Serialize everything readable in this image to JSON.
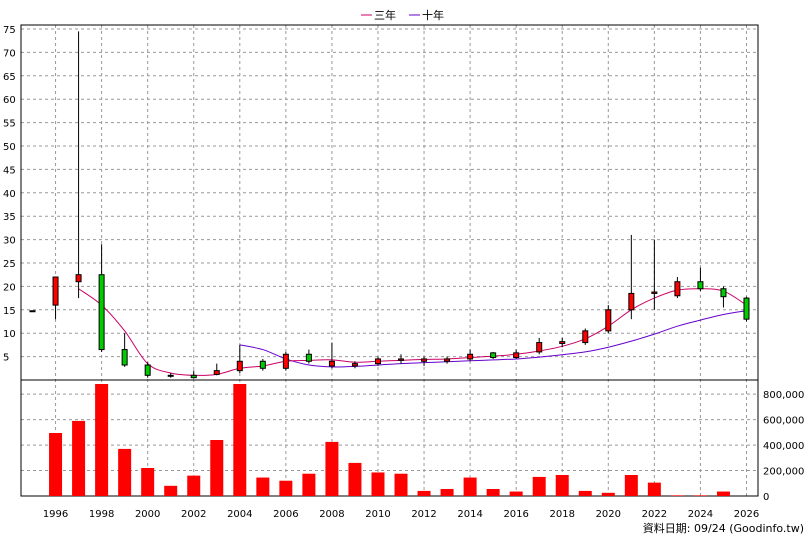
{
  "chart_data": {
    "type": "candlestick-with-volume",
    "legend": [
      {
        "label": "三年",
        "color": "#cc0066"
      },
      {
        "label": "十年",
        "color": "#6600cc"
      }
    ],
    "price_axis": {
      "ylim": [
        0,
        75
      ],
      "ticks": [
        5,
        10,
        15,
        20,
        25,
        30,
        35,
        40,
        45,
        50,
        55,
        60,
        65,
        70,
        75
      ]
    },
    "volume_axis": {
      "ylim": [
        0,
        880000
      ],
      "ticks": [
        0,
        200000,
        400000,
        600000,
        800000
      ],
      "tick_labels": [
        "0",
        "200,000",
        "400,000",
        "600,000",
        "800,000"
      ]
    },
    "x_axis": {
      "xlim": [
        1994.5,
        2026.5
      ],
      "tick_labels": [
        "1996",
        "1998",
        "2000",
        "2002",
        "2004",
        "2006",
        "2008",
        "2010",
        "2012",
        "2014",
        "2016",
        "2018",
        "2020",
        "2022",
        "2024",
        "2026"
      ]
    },
    "grid": true,
    "colors": {
      "up": "#ff0000",
      "down": "#00cc00",
      "volume": "#ff0000",
      "grid": "#999999"
    },
    "candles": [
      {
        "year": 1995,
        "open": 14.8,
        "close": 14.8,
        "high": 14.8,
        "low": 14.8
      },
      {
        "year": 1996,
        "open": 16.0,
        "close": 22.0,
        "high": 22.0,
        "low": 13.0
      },
      {
        "year": 1997,
        "open": 21.0,
        "close": 22.5,
        "high": 74.5,
        "low": 17.5
      },
      {
        "year": 1998,
        "open": 22.5,
        "close": 6.5,
        "high": 29.0,
        "low": 6.0
      },
      {
        "year": 1999,
        "open": 6.5,
        "close": 3.2,
        "high": 10.0,
        "low": 2.8
      },
      {
        "year": 2000,
        "open": 3.2,
        "close": 1.0,
        "high": 3.8,
        "low": 0.5
      },
      {
        "year": 2001,
        "open": 0.8,
        "close": 1.0,
        "high": 1.5,
        "low": 0.5
      },
      {
        "year": 2002,
        "open": 1.0,
        "close": 0.5,
        "high": 2.0,
        "low": 0.3
      },
      {
        "year": 2003,
        "open": 1.2,
        "close": 2.0,
        "high": 3.5,
        "low": 1.0
      },
      {
        "year": 2004,
        "open": 2.0,
        "close": 4.0,
        "high": 7.5,
        "low": 1.5
      },
      {
        "year": 2005,
        "open": 4.0,
        "close": 2.5,
        "high": 4.5,
        "low": 2.0
      },
      {
        "year": 2006,
        "open": 2.5,
        "close": 5.5,
        "high": 6.0,
        "low": 2.0
      },
      {
        "year": 2007,
        "open": 5.5,
        "close": 4.0,
        "high": 6.5,
        "low": 3.5
      },
      {
        "year": 2008,
        "open": 3.0,
        "close": 4.0,
        "high": 8.0,
        "low": 2.5
      },
      {
        "year": 2009,
        "open": 3.0,
        "close": 3.5,
        "high": 4.0,
        "low": 2.5
      },
      {
        "year": 2010,
        "open": 3.5,
        "close": 4.5,
        "high": 5.0,
        "low": 3.0
      },
      {
        "year": 2011,
        "open": 4.2,
        "close": 4.5,
        "high": 5.5,
        "low": 3.5
      },
      {
        "year": 2012,
        "open": 4.0,
        "close": 4.5,
        "high": 5.0,
        "low": 3.0
      },
      {
        "year": 2013,
        "open": 4.0,
        "close": 4.5,
        "high": 5.0,
        "low": 3.5
      },
      {
        "year": 2014,
        "open": 4.5,
        "close": 5.5,
        "high": 6.5,
        "low": 4.0
      },
      {
        "year": 2015,
        "open": 5.8,
        "close": 4.8,
        "high": 6.0,
        "low": 4.5
      },
      {
        "year": 2016,
        "open": 4.8,
        "close": 5.8,
        "high": 6.5,
        "low": 4.5
      },
      {
        "year": 2017,
        "open": 6.0,
        "close": 8.0,
        "high": 9.0,
        "low": 5.5
      },
      {
        "year": 2018,
        "open": 7.8,
        "close": 8.2,
        "high": 9.0,
        "low": 7.0
      },
      {
        "year": 2019,
        "open": 8.0,
        "close": 10.5,
        "high": 11.0,
        "low": 7.5
      },
      {
        "year": 2020,
        "open": 10.5,
        "close": 15.0,
        "high": 16.0,
        "low": 10.0
      },
      {
        "year": 2021,
        "open": 15.0,
        "close": 18.5,
        "high": 31.0,
        "low": 13.0
      },
      {
        "year": 2022,
        "open": 18.5,
        "close": 18.8,
        "high": 30.0,
        "low": 15.0
      },
      {
        "year": 2023,
        "open": 18.0,
        "close": 21.0,
        "high": 22.0,
        "low": 17.5
      },
      {
        "year": 2024,
        "open": 21.0,
        "close": 19.5,
        "high": 24.0,
        "low": 19.0
      },
      {
        "year": 2025,
        "open": 19.5,
        "close": 17.8,
        "high": 20.0,
        "low": 15.5
      },
      {
        "year": 2026,
        "open": 17.5,
        "close": 13.0,
        "high": 17.8,
        "low": 12.5
      }
    ],
    "volumes": [
      {
        "year": 1996,
        "value": 495000
      },
      {
        "year": 1997,
        "value": 590000
      },
      {
        "year": 1998,
        "value": 880000
      },
      {
        "year": 1999,
        "value": 370000
      },
      {
        "year": 2000,
        "value": 220000
      },
      {
        "year": 2001,
        "value": 80000
      },
      {
        "year": 2002,
        "value": 160000
      },
      {
        "year": 2003,
        "value": 440000
      },
      {
        "year": 2004,
        "value": 880000
      },
      {
        "year": 2005,
        "value": 145000
      },
      {
        "year": 2006,
        "value": 120000
      },
      {
        "year": 2007,
        "value": 175000
      },
      {
        "year": 2008,
        "value": 425000
      },
      {
        "year": 2009,
        "value": 260000
      },
      {
        "year": 2010,
        "value": 185000
      },
      {
        "year": 2011,
        "value": 175000
      },
      {
        "year": 2012,
        "value": 40000
      },
      {
        "year": 2013,
        "value": 55000
      },
      {
        "year": 2014,
        "value": 145000
      },
      {
        "year": 2015,
        "value": 55000
      },
      {
        "year": 2016,
        "value": 35000
      },
      {
        "year": 2017,
        "value": 150000
      },
      {
        "year": 2018,
        "value": 165000
      },
      {
        "year": 2019,
        "value": 40000
      },
      {
        "year": 2020,
        "value": 25000
      },
      {
        "year": 2021,
        "value": 165000
      },
      {
        "year": 2022,
        "value": 105000
      },
      {
        "year": 2023,
        "value": 5000
      },
      {
        "year": 2024,
        "value": 5000
      },
      {
        "year": 2025,
        "value": 35000
      }
    ],
    "ma3": [
      {
        "year": 1997,
        "value": 19.5
      },
      {
        "year": 1998,
        "value": 16.0
      },
      {
        "year": 1999,
        "value": 10.5
      },
      {
        "year": 2000,
        "value": 3.5
      },
      {
        "year": 2001,
        "value": 1.5
      },
      {
        "year": 2002,
        "value": 1.0
      },
      {
        "year": 2003,
        "value": 1.2
      },
      {
        "year": 2004,
        "value": 2.5
      },
      {
        "year": 2005,
        "value": 3.0
      },
      {
        "year": 2006,
        "value": 4.0
      },
      {
        "year": 2007,
        "value": 4.2
      },
      {
        "year": 2008,
        "value": 4.3
      },
      {
        "year": 2009,
        "value": 3.8
      },
      {
        "year": 2010,
        "value": 4.0
      },
      {
        "year": 2011,
        "value": 4.2
      },
      {
        "year": 2012,
        "value": 4.4
      },
      {
        "year": 2013,
        "value": 4.5
      },
      {
        "year": 2014,
        "value": 4.8
      },
      {
        "year": 2015,
        "value": 5.1
      },
      {
        "year": 2016,
        "value": 5.5
      },
      {
        "year": 2017,
        "value": 6.2
      },
      {
        "year": 2018,
        "value": 7.2
      },
      {
        "year": 2019,
        "value": 8.8
      },
      {
        "year": 2020,
        "value": 11.5
      },
      {
        "year": 2021,
        "value": 15.0
      },
      {
        "year": 2022,
        "value": 17.5
      },
      {
        "year": 2023,
        "value": 19.2
      },
      {
        "year": 2024,
        "value": 19.5
      },
      {
        "year": 2025,
        "value": 19.0
      },
      {
        "year": 2026,
        "value": 16.0
      }
    ],
    "ma10": [
      {
        "year": 2004,
        "value": 7.5
      },
      {
        "year": 2005,
        "value": 6.5
      },
      {
        "year": 2006,
        "value": 4.5
      },
      {
        "year": 2007,
        "value": 3.2
      },
      {
        "year": 2008,
        "value": 2.8
      },
      {
        "year": 2009,
        "value": 2.9
      },
      {
        "year": 2010,
        "value": 3.2
      },
      {
        "year": 2011,
        "value": 3.5
      },
      {
        "year": 2012,
        "value": 3.7
      },
      {
        "year": 2013,
        "value": 3.9
      },
      {
        "year": 2014,
        "value": 4.1
      },
      {
        "year": 2015,
        "value": 4.3
      },
      {
        "year": 2016,
        "value": 4.5
      },
      {
        "year": 2017,
        "value": 4.9
      },
      {
        "year": 2018,
        "value": 5.4
      },
      {
        "year": 2019,
        "value": 6.0
      },
      {
        "year": 2020,
        "value": 7.0
      },
      {
        "year": 2021,
        "value": 8.3
      },
      {
        "year": 2022,
        "value": 9.8
      },
      {
        "year": 2023,
        "value": 11.5
      },
      {
        "year": 2024,
        "value": 12.8
      },
      {
        "year": 2025,
        "value": 14.0
      },
      {
        "year": 2026,
        "value": 14.8
      }
    ],
    "source_label": "資料日期: 09/24  (Goodinfo.tw)"
  }
}
